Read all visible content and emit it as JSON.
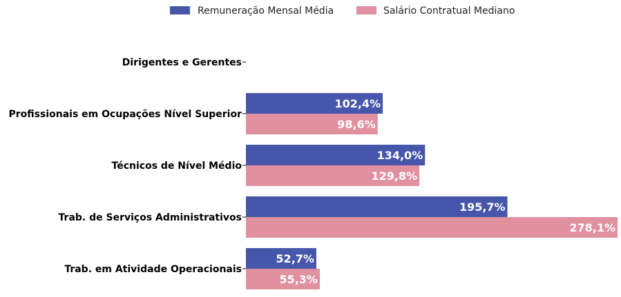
{
  "chart_data": {
    "type": "bar",
    "orientation": "horizontal",
    "categories": [
      "Dirigentes e Gerentes",
      "Profissionais em Ocupações Nível Superior",
      "Técnicos de Nível Médio",
      "Trab. de Serviços Administrativos",
      "Trab. em Atividade Operacionais"
    ],
    "series": [
      {
        "name": "Remuneração Mensal Média",
        "color": "#4657ab",
        "values": [
          null,
          102.4,
          134.0,
          195.7,
          52.7
        ],
        "labels": [
          "",
          "102,4%",
          "134,0%",
          "195,7%",
          "52,7%"
        ]
      },
      {
        "name": "Salário Contratual Mediano",
        "color": "#e0909f",
        "values": [
          null,
          98.6,
          129.8,
          278.1,
          55.3
        ],
        "labels": [
          "",
          "98,6%",
          "129,8%",
          "278,1%",
          "55,3%"
        ]
      }
    ],
    "xlim": [
      0,
      278.1
    ],
    "grid": false,
    "legend_position": "top-center",
    "title": "",
    "xlabel": "",
    "ylabel": ""
  }
}
